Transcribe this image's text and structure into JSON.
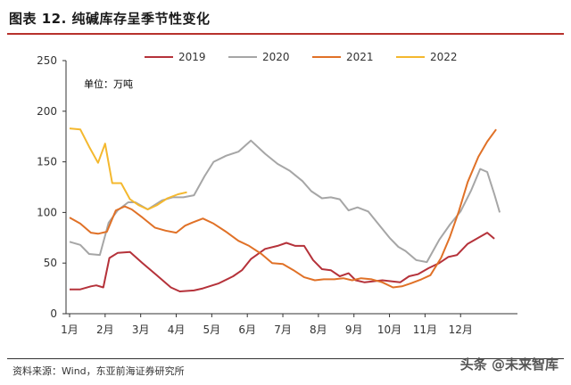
{
  "header": {
    "title": "图表 12. 纯碱库存呈季节性变化"
  },
  "footer": {
    "source": "资料来源：Wind，东亚前海证券研究所",
    "watermark": "头条 @未来智库"
  },
  "chart_data": {
    "type": "line",
    "title": "图表 12. 纯碱库存呈季节性变化",
    "unit_label": "单位：万吨",
    "xlabel": "",
    "ylabel": "",
    "ylim": [
      0,
      250
    ],
    "yticks": [
      0,
      50,
      100,
      150,
      200,
      250
    ],
    "xlim": [
      0,
      12.5
    ],
    "xticks": [
      {
        "label": "1月",
        "value": 0
      },
      {
        "label": "2月",
        "value": 1
      },
      {
        "label": "3月",
        "value": 2
      },
      {
        "label": "4月",
        "value": 3
      },
      {
        "label": "5月",
        "value": 4
      },
      {
        "label": "6月",
        "value": 5
      },
      {
        "label": "7月",
        "value": 6
      },
      {
        "label": "8月",
        "value": 7
      },
      {
        "label": "9月",
        "value": 8
      },
      {
        "label": "10月",
        "value": 9
      },
      {
        "label": "11月",
        "value": 10
      },
      {
        "label": "12月",
        "value": 11
      }
    ],
    "grid": false,
    "legend_position": "top",
    "series": [
      {
        "name": "2019",
        "color": "#b5323a",
        "x": [
          0,
          0.3,
          0.6,
          0.75,
          0.95,
          1.12,
          1.35,
          1.7,
          2.05,
          2.45,
          2.85,
          3.1,
          3.5,
          3.75,
          4.2,
          4.6,
          4.85,
          5.1,
          5.5,
          5.85,
          6.1,
          6.35,
          6.6,
          6.85,
          7.1,
          7.35,
          7.6,
          7.85,
          8.05,
          8.3,
          8.55,
          8.8,
          9.05,
          9.3,
          9.55,
          9.8,
          10.1,
          10.4,
          10.65,
          10.9,
          11.2,
          11.5,
          11.75,
          11.95
        ],
        "y": [
          24,
          24,
          27,
          28,
          26,
          55,
          60,
          61,
          50,
          38,
          26,
          22,
          23,
          25,
          30,
          37,
          43,
          54,
          64,
          67,
          70,
          67,
          67,
          53,
          44,
          43,
          37,
          40,
          33,
          31,
          32,
          33,
          32,
          31,
          37,
          39,
          45,
          50,
          56,
          58,
          69,
          75,
          80,
          74
        ]
      },
      {
        "name": "2020",
        "color": "#a6a6a6",
        "x": [
          0,
          0.3,
          0.55,
          0.85,
          1.1,
          1.35,
          1.65,
          1.85,
          2.2,
          2.6,
          2.9,
          3.2,
          3.5,
          3.8,
          4.05,
          4.4,
          4.75,
          5.1,
          5.5,
          5.85,
          6.2,
          6.55,
          6.8,
          7.1,
          7.35,
          7.6,
          7.85,
          8.1,
          8.4,
          8.7,
          9.0,
          9.25,
          9.45,
          9.75,
          10.05,
          10.4,
          10.7,
          11.0,
          11.3,
          11.55,
          11.75,
          11.95,
          12.1
        ],
        "y": [
          71,
          68,
          59,
          58,
          90,
          102,
          110,
          110,
          103,
          112,
          115,
          115,
          117,
          136,
          150,
          156,
          160,
          171,
          158,
          148,
          141,
          131,
          121,
          114,
          115,
          113,
          102,
          105,
          101,
          88,
          75,
          66,
          62,
          53,
          51,
          73,
          88,
          101,
          122,
          143,
          140,
          118,
          100
        ]
      },
      {
        "name": "2021",
        "color": "#e07127",
        "x": [
          0,
          0.3,
          0.6,
          0.8,
          1.05,
          1.3,
          1.55,
          1.75,
          2.05,
          2.4,
          2.7,
          3.0,
          3.25,
          3.45,
          3.75,
          4.05,
          4.4,
          4.75,
          5.05,
          5.4,
          5.7,
          6.0,
          6.3,
          6.6,
          6.9,
          7.15,
          7.45,
          7.7,
          7.95,
          8.2,
          8.5,
          8.8,
          9.1,
          9.35,
          9.6,
          9.9,
          10.15,
          10.45,
          10.7,
          10.95,
          11.2,
          11.5,
          11.75,
          12.0
        ],
        "y": [
          95,
          89,
          80,
          79,
          81,
          102,
          106,
          103,
          95,
          85,
          82,
          80,
          87,
          90,
          94,
          89,
          81,
          72,
          67,
          59,
          50,
          49,
          43,
          36,
          33,
          34,
          34,
          35,
          33,
          35,
          34,
          31,
          26,
          27,
          30,
          34,
          38,
          55,
          76,
          101,
          130,
          155,
          170,
          182
        ]
      },
      {
        "name": "2022",
        "color": "#f4b82e",
        "x": [
          0,
          0.3,
          0.55,
          0.8,
          1.0,
          1.2,
          1.45,
          1.7,
          1.95,
          2.2,
          2.45,
          2.75,
          3.05,
          3.3
        ],
        "y": [
          183,
          182,
          165,
          149,
          168,
          129,
          129,
          113,
          107,
          103,
          107,
          114,
          118,
          120
        ]
      }
    ]
  }
}
